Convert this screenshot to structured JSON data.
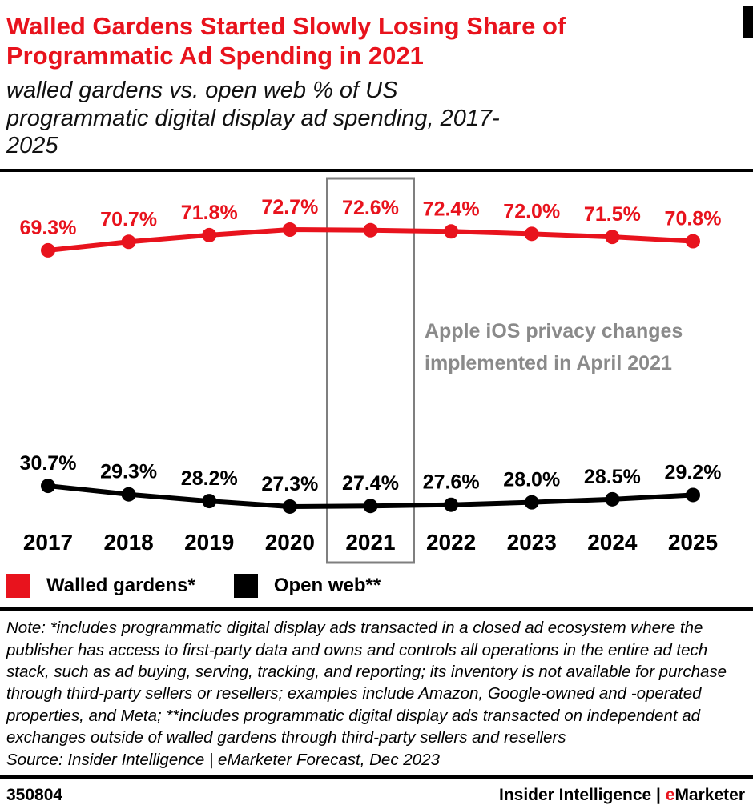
{
  "colors": {
    "brand_red": "#e8131d",
    "annotation_gray": "#8a8a8a",
    "box_gray": "#7f7f7f"
  },
  "header": {
    "title": "Walled Gardens Started Slowly Losing Share of Programmatic Ad Spending in 2021",
    "subtitle": "walled gardens vs. open web % of US programmatic digital display ad spending, 2017-2025"
  },
  "chart_data": {
    "type": "line",
    "categories": [
      "2017",
      "2018",
      "2019",
      "2020",
      "2021",
      "2022",
      "2023",
      "2024",
      "2025"
    ],
    "series": [
      {
        "name": "Walled gardens*",
        "color": "#e8131d",
        "values": [
          69.3,
          70.7,
          71.8,
          72.7,
          72.6,
          72.4,
          72.0,
          71.5,
          70.8
        ]
      },
      {
        "name": "Open web**",
        "color": "#000000",
        "values": [
          30.7,
          29.3,
          28.2,
          27.3,
          27.4,
          27.6,
          28.0,
          28.5,
          29.2
        ]
      }
    ],
    "value_suffix": "%",
    "grid": false,
    "legend_position": "bottom",
    "ylim_note": "axis not shown; data labels printed at each point",
    "annotation": {
      "text_line1": "Apple iOS privacy changes",
      "text_line2": "implemented in April 2021",
      "highlight_category": "2021",
      "box_color": "#7f7f7f"
    }
  },
  "note": {
    "note_text": "Note: *includes programmatic digital display ads transacted in a closed ad ecosystem where the publisher has access to first-party data and owns and controls all operations in the entire ad tech stack, such as ad buying, serving, tracking, and reporting; its inventory is not available for purchase through third-party sellers or resellers; examples include Amazon, Google-owned and -operated properties, and Meta; **includes programmatic digital display ads transacted on independent ad exchanges outside of walled gardens through third-party sellers and resellers",
    "source_text": "Source: Insider Intelligence | eMarketer Forecast, Dec 2023"
  },
  "footer": {
    "chart_id": "350804",
    "brand_main": "Insider Intelligence | ",
    "brand_e": "e",
    "brand_rest": "Marketer"
  }
}
